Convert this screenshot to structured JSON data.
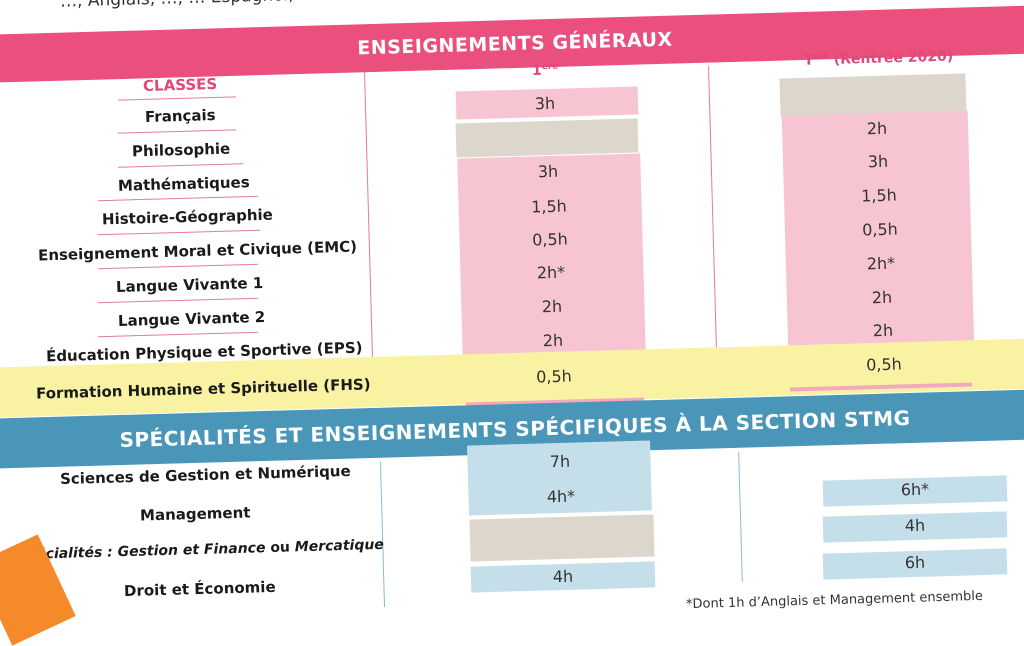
{
  "top_strip": "…, Anglais, …, … Espagnol, …",
  "general": {
    "banner": "ENSEIGNEMENTS GÉNÉRAUX",
    "classes_label": "CLASSES",
    "col1_header": "1",
    "col1_sup": "ère",
    "col2_header": "T",
    "col2_sup": "ale",
    "col2_suffix": " (Rentrée 2020)",
    "subjects": [
      "Français",
      "Philosophie",
      "Mathématiques",
      "Histoire-Géographie",
      "Enseignement Moral et Civique (EMC)",
      "Langue Vivante 1",
      "Langue Vivante 2",
      "Éducation Physique et Sportive (EPS)",
      "Formation Humaine et Spirituelle (FHS)"
    ],
    "col1_values": [
      "3h",
      "",
      "3h",
      "1,5h",
      "0,5h",
      "2h*",
      "2h",
      "2h",
      "0,5h"
    ],
    "col2_values": [
      "",
      "2h",
      "3h",
      "1,5h",
      "0,5h",
      "2h*",
      "2h",
      "2h",
      "0,5h"
    ]
  },
  "specialties": {
    "banner": "SPÉCIALITÉS ET ENSEIGNEMENTS SPÉCIFIQUES À LA SECTION STMG",
    "subjects": [
      "Sciences de Gestion et Numérique",
      "Management",
      "Droit et Économie"
    ],
    "spec_prefix": "Spécialités : Gestion et Finance",
    "spec_or": " ou ",
    "spec_suffix": "Mercatique",
    "col1_values": [
      "7h",
      "4h*",
      "",
      "4h"
    ],
    "col2_values": [
      "6h*",
      "4h",
      "6h"
    ]
  },
  "footnote": "*Dont 1h d’Anglais et Management ensemble"
}
